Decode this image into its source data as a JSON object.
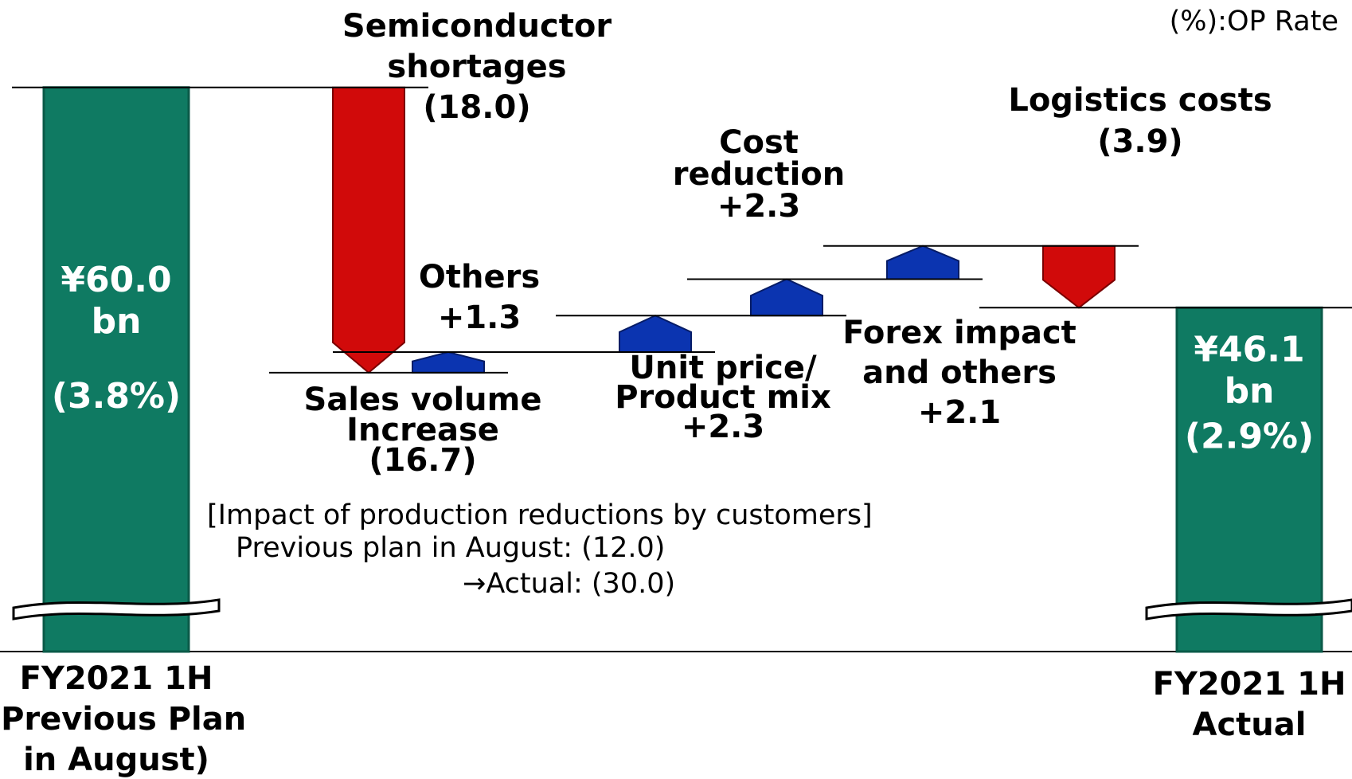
{
  "note": "(%):OP Rate",
  "note_lines": [
    "[Impact of production reductions by customers]",
    "Previous plan in August: (12.0)",
    "→Actual: (30.0)"
  ],
  "chart_data": {
    "type": "waterfall",
    "categories": [
      "FY2021 1H\n(Previous Plan\nin August)",
      "Semiconductor\nshortages",
      "Others",
      "Unit price/\nProduct mix",
      "Cost\nreduction",
      "Forex impact\nand others",
      "Logistics costs",
      "FY2021 1H\nActual"
    ],
    "kinds": [
      "total",
      "step",
      "step",
      "step",
      "step",
      "step",
      "step",
      "total"
    ],
    "values": [
      60.0,
      -18.0,
      1.3,
      2.3,
      2.3,
      2.1,
      -3.9,
      46.1
    ],
    "value_labels": [
      "¥60.0\nbn",
      "(18.0)",
      "+1.3",
      "+2.3",
      "+2.3",
      "+2.1",
      "(3.9)",
      "¥46.1\nbn"
    ],
    "rate_labels": [
      "(3.8%)",
      null,
      null,
      null,
      null,
      null,
      null,
      "(2.9%)"
    ],
    "group": {
      "label": "Sales volume\nIncrease",
      "value": -16.7,
      "value_label": "(16.7)"
    },
    "colors": {
      "total": "#0f7a62",
      "increase": "#0b34b0",
      "decrease": "#d10a0a"
    },
    "ylim": [
      24.4,
      62
    ],
    "axis_break": true
  }
}
